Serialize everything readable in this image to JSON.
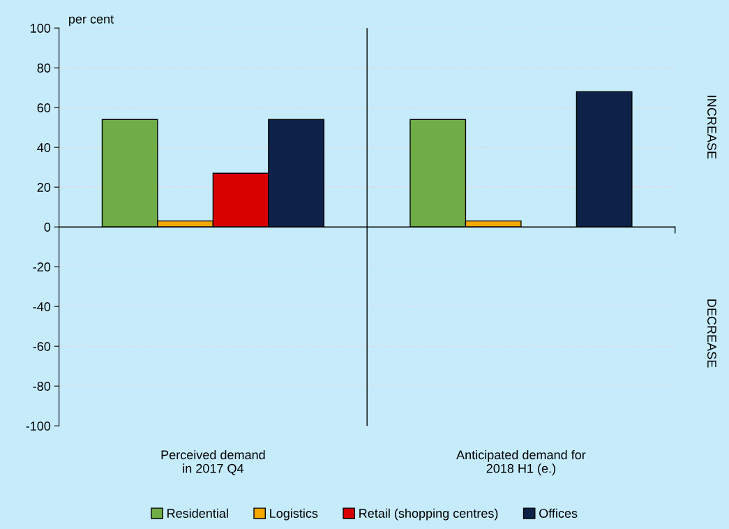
{
  "chart_data": {
    "type": "bar",
    "ylabel": "per cent",
    "categories": [
      "Perceived demand\nin 2017 Q4",
      "Anticipated demand for\n2018 H1 (e.)"
    ],
    "series": [
      {
        "name": "Residential",
        "color": "#70ad47",
        "values": [
          54,
          54
        ]
      },
      {
        "name": "Logistics",
        "color": "#f5a800",
        "values": [
          3,
          3
        ]
      },
      {
        "name": "Retail (shopping centres)",
        "color": "#d90000",
        "values": [
          27,
          null
        ]
      },
      {
        "name": "Offices",
        "color": "#0d2149",
        "values": [
          54,
          68
        ]
      }
    ],
    "ylim": [
      -100,
      100
    ],
    "yticks": [
      -100,
      -80,
      -60,
      -40,
      -20,
      0,
      20,
      40,
      60,
      80,
      100
    ],
    "grid": "y",
    "legend": "bottom",
    "annotations": [
      "INCREASE",
      "DECREASE"
    ]
  }
}
